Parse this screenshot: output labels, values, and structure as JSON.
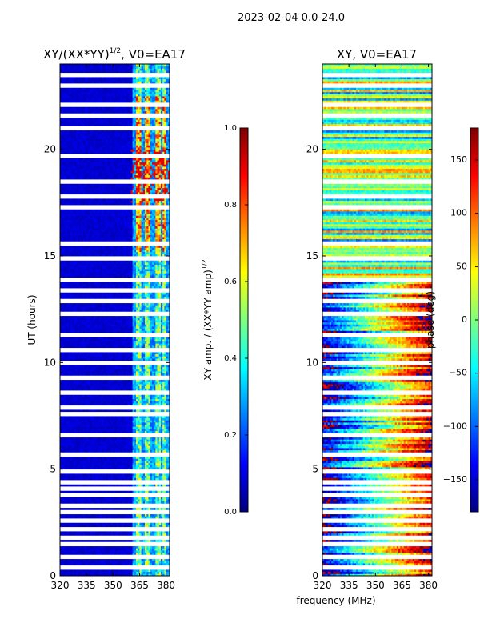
{
  "suptitle": "2023-02-04 0.0-24.0",
  "colors": {
    "bands": [
      "#00007f",
      "#0000ff",
      "#007fff",
      "#00ffff",
      "#7fff7f",
      "#ffff00",
      "#ff7f00",
      "#ff0000",
      "#7f0000"
    ],
    "gap": "#ffffff"
  },
  "chart_data": [
    {
      "type": "heatmap",
      "title": "XY/(XX*YY)",
      "title_sup": "1/2",
      "title_suffix": ", V0=EA17",
      "xlabel": "",
      "ylabel": "UT (hours)",
      "xlim": [
        320,
        382
      ],
      "ylim": [
        0,
        24
      ],
      "xticks": [
        "320",
        "335",
        "350",
        "365",
        "380"
      ],
      "xtick_values": [
        320,
        335,
        350,
        365,
        380
      ],
      "yticks": [
        "0",
        "5",
        "10",
        "15",
        "20"
      ],
      "ytick_values": [
        0,
        5,
        10,
        15,
        20
      ],
      "colorbar": {
        "label": "XY amp. / (XX*YY amp)",
        "label_sup": "1/2",
        "range": [
          0,
          1
        ],
        "ticks": [
          "0.0",
          "0.2",
          "0.4",
          "0.6",
          "0.8",
          "1.0"
        ],
        "tick_values": [
          0,
          0.2,
          0.4,
          0.6,
          0.8,
          1.0
        ]
      },
      "flagged_hours": [
        0.4,
        0.9,
        1.5,
        1.8,
        2.2,
        2.6,
        3.0,
        3.3,
        3.8,
        4.1,
        4.4,
        4.9,
        5.7,
        6.6,
        7.6,
        7.9,
        8.6,
        9.3,
        10.0,
        10.6,
        11.3,
        12.3,
        12.9,
        13.4,
        13.9,
        14.9,
        15.6,
        17.3,
        17.8,
        18.5,
        19.7,
        21.0,
        21.6,
        22.1,
        23.0,
        23.5
      ],
      "bright_channels_mhz": [
        [
          363,
          366
        ],
        [
          368,
          371
        ],
        [
          374,
          377
        ],
        [
          378,
          380
        ]
      ],
      "description_values": {
        "baseline_amp": 0.05,
        "bright_amp_low_ut": 0.45,
        "bright_amp_high_ut": 0.7
      }
    },
    {
      "type": "heatmap",
      "title": "XY, V0=EA17",
      "xlabel": "frequency (MHz)",
      "ylabel": "",
      "xlim": [
        320,
        382
      ],
      "ylim": [
        0,
        24
      ],
      "xticks": [
        "320",
        "335",
        "350",
        "365",
        "380"
      ],
      "xtick_values": [
        320,
        335,
        350,
        365,
        380
      ],
      "yticks": [
        "0",
        "5",
        "10",
        "15",
        "20"
      ],
      "ytick_values": [
        0,
        5,
        10,
        15,
        20
      ],
      "colorbar": {
        "label": "phase (deg)",
        "range": [
          -180,
          180
        ],
        "ticks": [
          "−150",
          "−100",
          "−50",
          "0",
          "50",
          "100",
          "150"
        ],
        "tick_values": [
          -150,
          -100,
          -50,
          0,
          50,
          100,
          150
        ]
      },
      "flagged_hours": [
        0.4,
        0.9,
        1.5,
        1.8,
        2.2,
        2.6,
        3.0,
        3.3,
        3.8,
        4.1,
        4.4,
        4.9,
        5.7,
        6.6,
        7.6,
        7.9,
        8.6,
        9.3,
        10.0,
        10.6,
        11.3,
        12.3,
        12.9,
        13.4,
        13.9,
        14.9,
        15.6,
        17.3,
        17.8,
        18.5,
        19.7,
        21.0,
        21.6,
        22.1,
        23.0,
        23.5
      ]
    }
  ]
}
